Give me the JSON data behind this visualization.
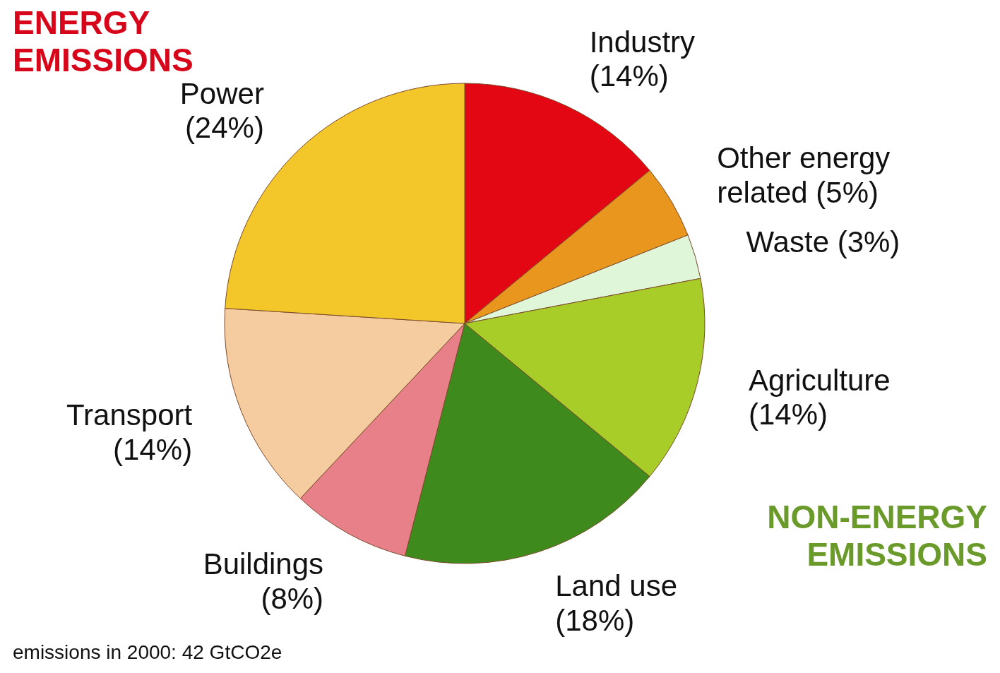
{
  "chart_data": {
    "type": "pie",
    "categories": [
      "Industry",
      "Other energy related",
      "Waste",
      "Agriculture",
      "Land use",
      "Buildings",
      "Transport",
      "Power"
    ],
    "values": [
      14,
      5,
      3,
      14,
      18,
      8,
      14,
      24
    ],
    "value_labels": [
      "(14%)",
      "(5%)",
      "(3%)",
      "(14%)",
      "(18%)",
      "(8%)",
      "(14%)",
      "(24%)"
    ],
    "colors": [
      "#e30613",
      "#e8961e",
      "#dff7d8",
      "#a8cc28",
      "#3f8a1c",
      "#e8808a",
      "#f5cba0",
      "#f3c62a"
    ],
    "annotations": [
      "ENERGY EMISSIONS",
      "NON-ENERGY EMISSIONS",
      "emissions in 2000: 42 GtCO2e"
    ]
  }
}
